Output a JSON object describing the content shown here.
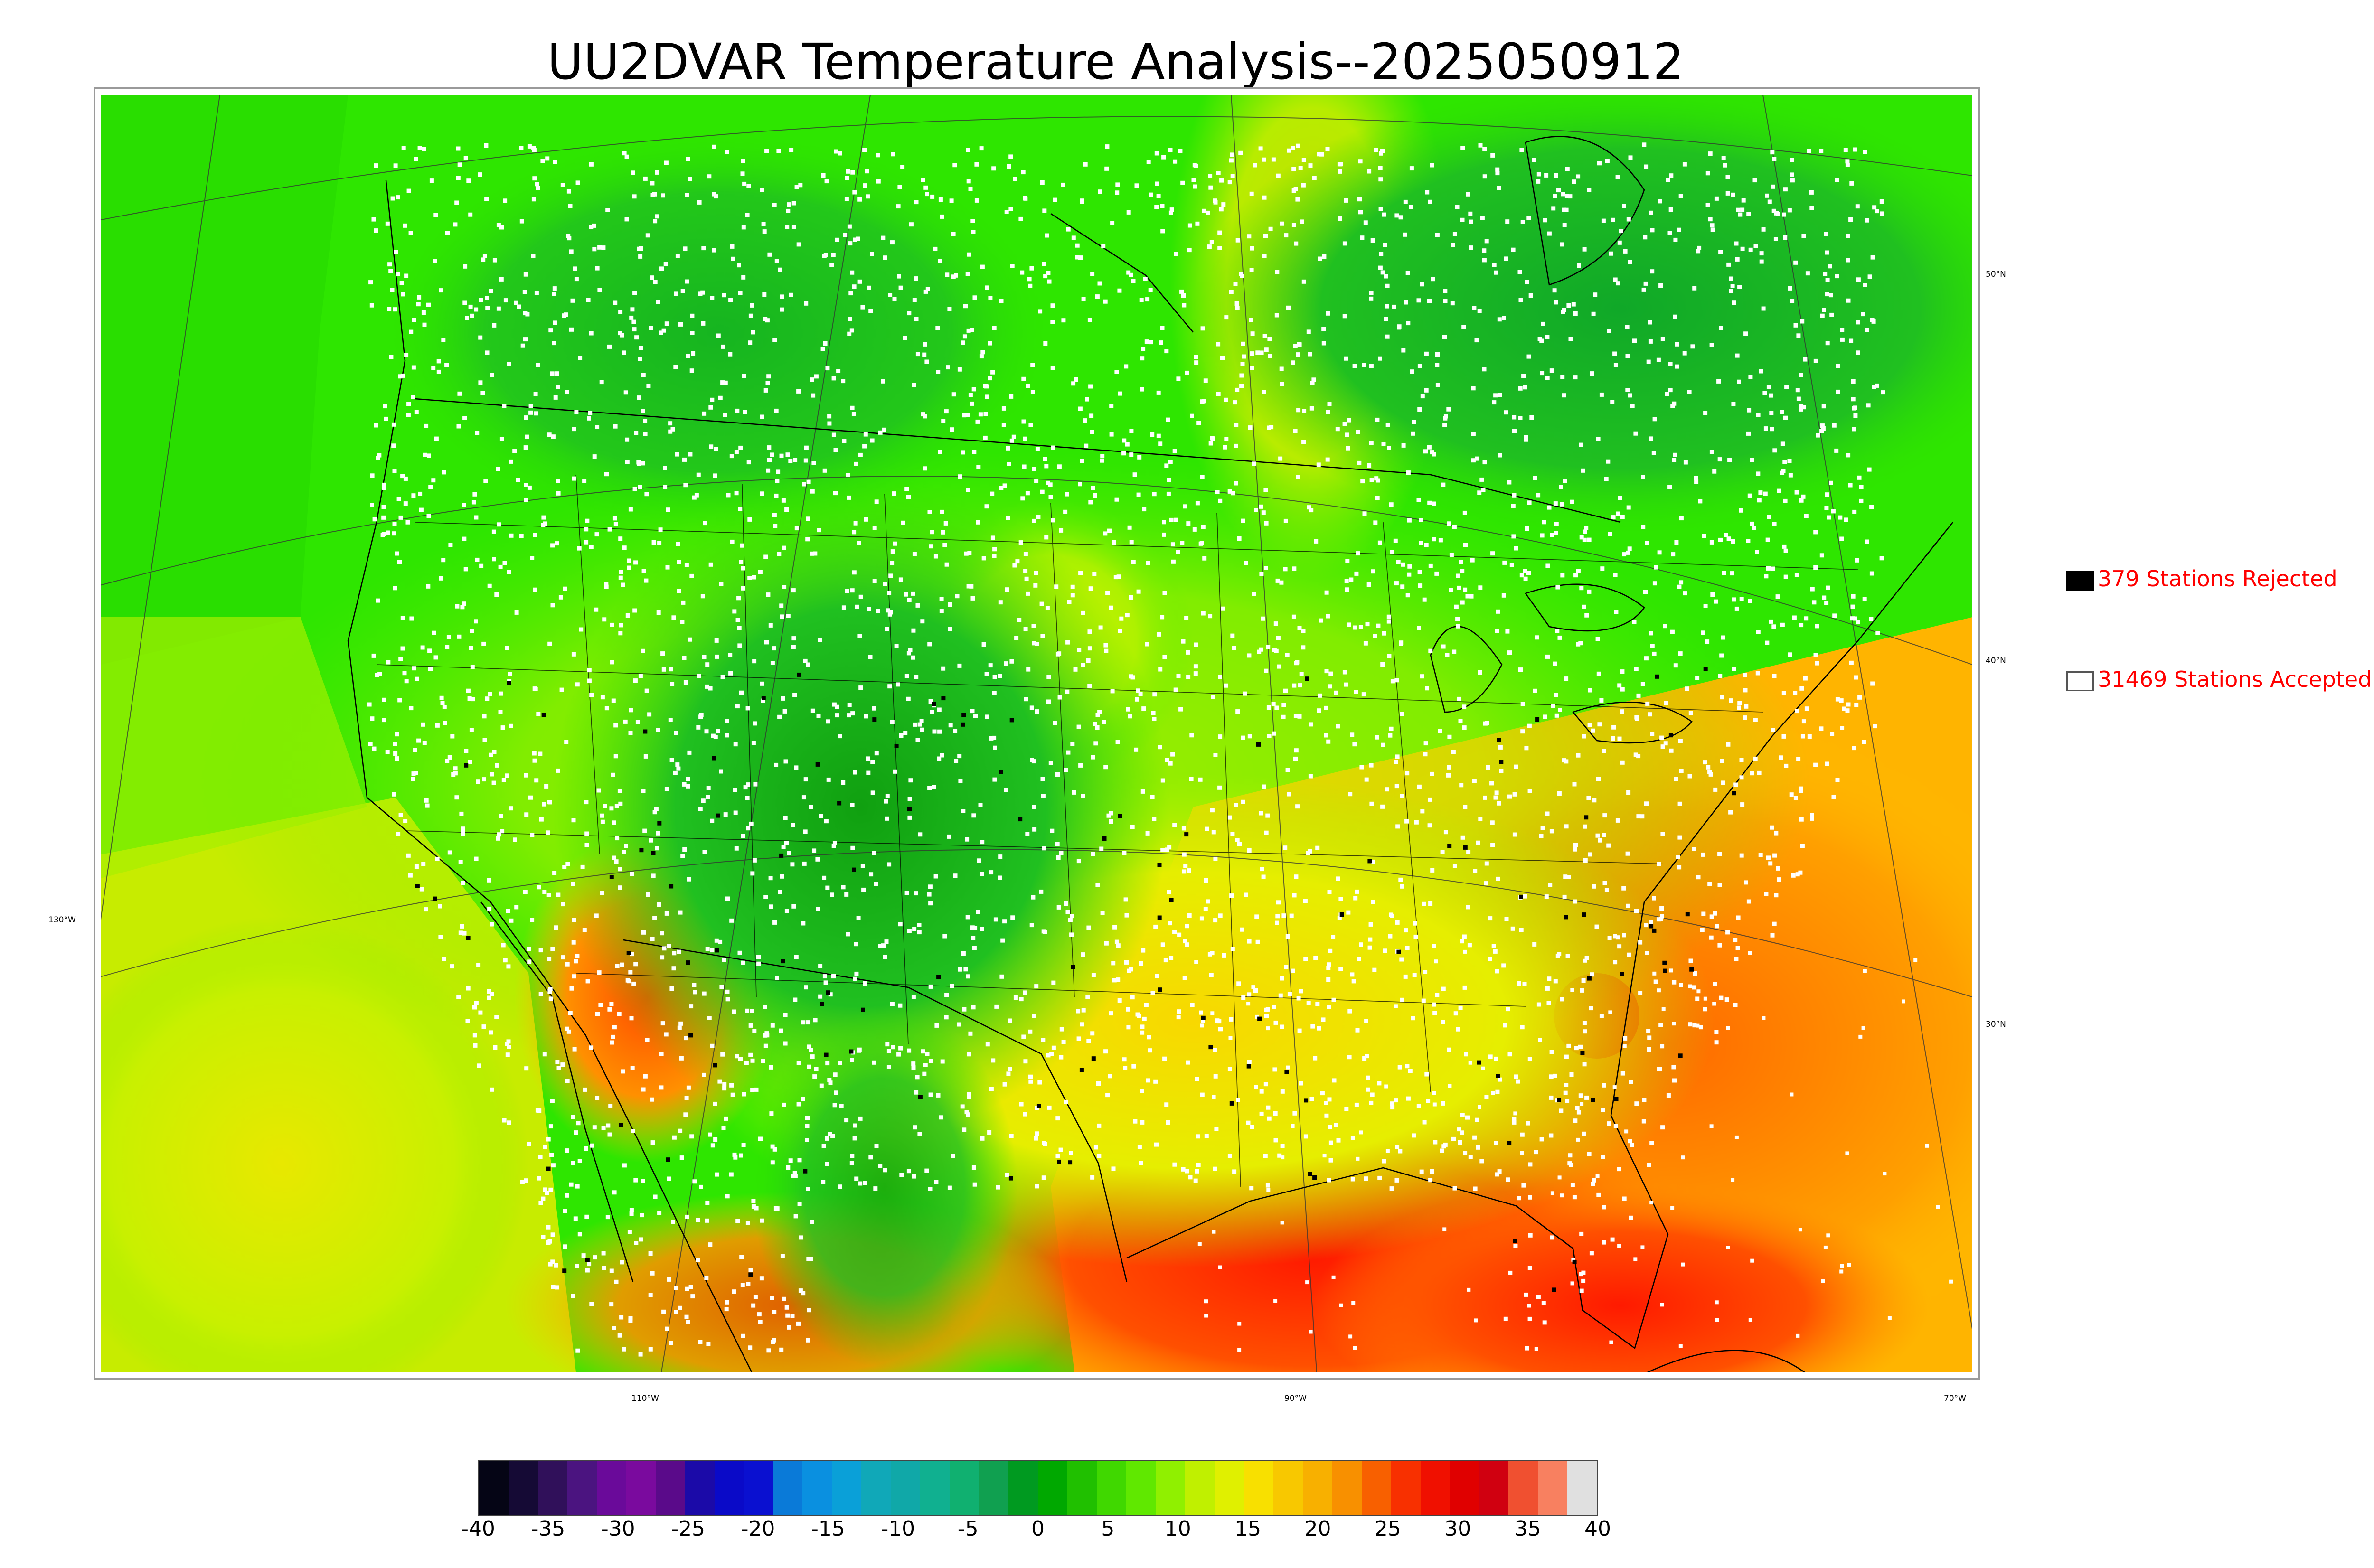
{
  "title": "UU2DVAR Temperature Analysis--2025050912",
  "legend": {
    "rejected": {
      "count_label": "379 Stations Rejected",
      "swatch_color": "#000000"
    },
    "accepted": {
      "count_label": "31469 Stations Accepted",
      "swatch_color": "#ffffff"
    }
  },
  "latitude_labels": [
    "50°N",
    "40°N",
    "30°N"
  ],
  "longitude_labels": [
    "130°W",
    "110°W",
    "90°W",
    "70°W"
  ],
  "colorbar": {
    "tick_labels": [
      "-40",
      "-35",
      "-30",
      "-25",
      "-20",
      "-15",
      "-10",
      "-5",
      "0",
      "5",
      "10",
      "15",
      "20",
      "25",
      "30",
      "35",
      "40"
    ],
    "range": [
      -40,
      40
    ],
    "colors": [
      "#050515",
      "#150a35",
      "#30105a",
      "#4b1480",
      "#6a0a9a",
      "#7a0a9e",
      "#5a0a8a",
      "#1b0aa8",
      "#0a0ac8",
      "#0a10d0",
      "#0a7ad8",
      "#0a90e0",
      "#0aa0d8",
      "#10a8b8",
      "#10a8a8",
      "#10b090",
      "#10b070",
      "#10a050",
      "#009a20",
      "#00a800",
      "#20c000",
      "#40d800",
      "#60e800",
      "#90f000",
      "#c0f000",
      "#e0f000",
      "#f8e000",
      "#f8c800",
      "#f8b000",
      "#f89000",
      "#f86000",
      "#f83000",
      "#f01000",
      "#e00000",
      "#d00010",
      "#f05030",
      "#f88060",
      "#e0e0e0"
    ]
  },
  "map": {
    "colors": {
      "cool_green": "#1ec81e",
      "bright_green": "#32ff00",
      "yellow": "#e8f000",
      "orange": "#ffa000",
      "red": "#ff3a00",
      "station_accepted": "#ffffff",
      "station_rejected": "#000000",
      "border": "#000000"
    }
  }
}
